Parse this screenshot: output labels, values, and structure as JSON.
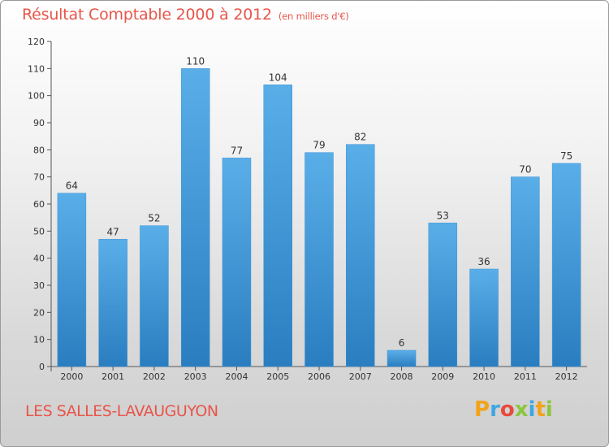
{
  "chart_data": {
    "type": "bar",
    "title": "Résultat Comptable 2000 à 2012",
    "unit": "(en milliers d'€)",
    "categories": [
      "2000",
      "2001",
      "2002",
      "2003",
      "2004",
      "2005",
      "2006",
      "2007",
      "2008",
      "2009",
      "2010",
      "2011",
      "2012"
    ],
    "values": [
      64,
      47,
      52,
      110,
      77,
      104,
      79,
      82,
      6,
      53,
      36,
      70,
      75
    ],
    "yticks": [
      0,
      10,
      20,
      30,
      40,
      50,
      60,
      70,
      80,
      90,
      100,
      110,
      120
    ],
    "ylim": [
      0,
      120
    ],
    "xlabel": "",
    "ylabel": "",
    "bar_color": "#5aaee8",
    "bar_color_dark": "#2a7ec0"
  },
  "footer": {
    "town": "LES SALLES-LAVAUGUYON",
    "logo": [
      "P",
      "r",
      "o",
      "x",
      "i",
      "t",
      "i"
    ],
    "logo_colors": [
      "#f2a31a",
      "#3fa7e0",
      "#e84a3c",
      "#8cc63f",
      "#3fa7e0",
      "#f2a31a",
      "#8cc63f"
    ]
  },
  "colors": {
    "accent": "#e8554a"
  }
}
